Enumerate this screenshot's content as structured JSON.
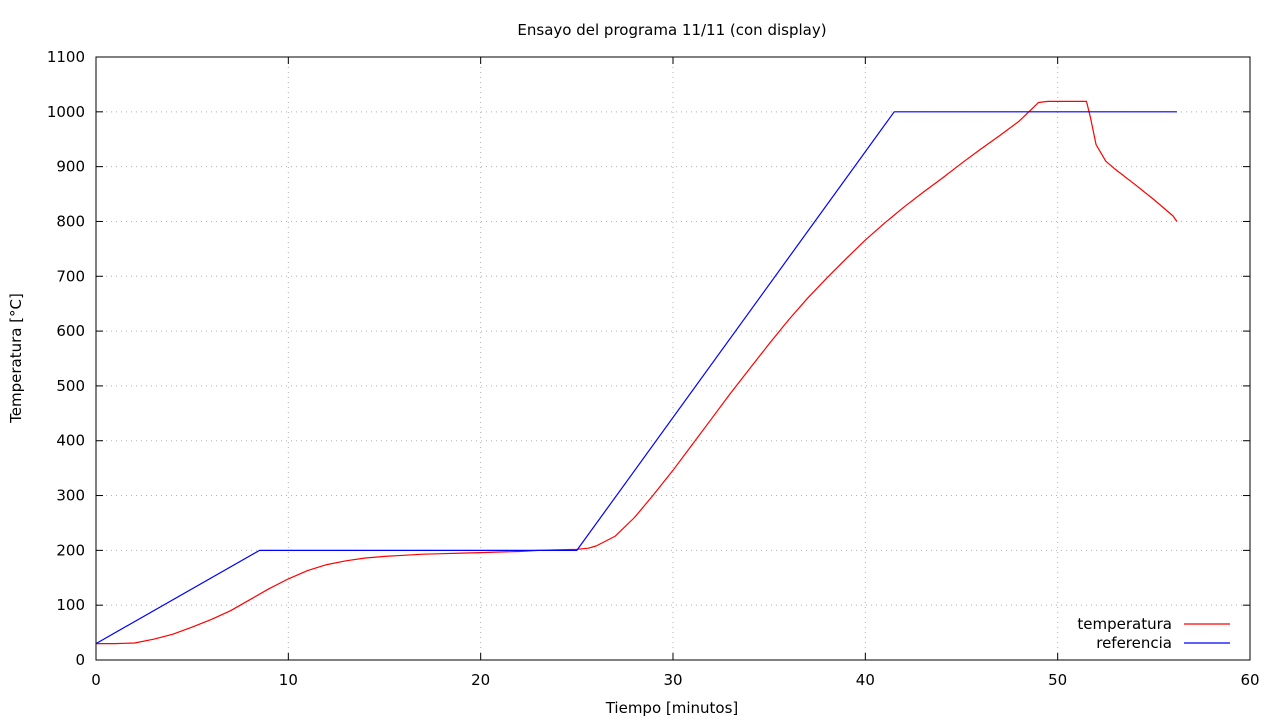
{
  "chart_data": {
    "type": "line",
    "title": "Ensayo del programa 11/11 (con display)",
    "xlabel": "Tiempo [minutos]",
    "ylabel": "Temperatura [°C]",
    "xlim": [
      0,
      60
    ],
    "ylim": [
      0,
      1100
    ],
    "xticks": [
      0,
      10,
      20,
      30,
      40,
      50,
      60
    ],
    "yticks": [
      0,
      100,
      200,
      300,
      400,
      500,
      600,
      700,
      800,
      900,
      1000,
      1100
    ],
    "grid": true,
    "legend_position": "bottom-right",
    "series": [
      {
        "name": "temperatura",
        "color": "#ff0000",
        "points": [
          [
            0,
            30
          ],
          [
            1,
            30
          ],
          [
            2,
            31
          ],
          [
            3,
            38
          ],
          [
            4,
            47
          ],
          [
            5,
            60
          ],
          [
            6,
            74
          ],
          [
            7,
            90
          ],
          [
            8,
            110
          ],
          [
            9,
            130
          ],
          [
            10,
            148
          ],
          [
            11,
            163
          ],
          [
            12,
            174
          ],
          [
            13,
            181
          ],
          [
            14,
            186
          ],
          [
            15,
            189
          ],
          [
            16,
            191
          ],
          [
            17,
            193
          ],
          [
            18,
            194
          ],
          [
            19,
            195
          ],
          [
            20,
            196
          ],
          [
            21,
            197
          ],
          [
            22,
            198
          ],
          [
            23,
            200
          ],
          [
            24,
            201
          ],
          [
            25,
            202
          ],
          [
            25.6,
            204
          ],
          [
            26,
            208
          ],
          [
            27,
            226
          ],
          [
            28,
            260
          ],
          [
            29,
            302
          ],
          [
            30,
            346
          ],
          [
            31,
            393
          ],
          [
            32,
            440
          ],
          [
            33,
            487
          ],
          [
            34,
            532
          ],
          [
            35,
            577
          ],
          [
            36,
            620
          ],
          [
            37,
            660
          ],
          [
            38,
            697
          ],
          [
            39,
            732
          ],
          [
            40,
            766
          ],
          [
            41,
            797
          ],
          [
            42,
            826
          ],
          [
            43,
            853
          ],
          [
            44,
            879
          ],
          [
            45,
            906
          ],
          [
            46,
            932
          ],
          [
            47,
            957
          ],
          [
            48,
            983
          ],
          [
            48.8,
            1010
          ],
          [
            49,
            1017
          ],
          [
            49.5,
            1019
          ],
          [
            51.5,
            1019
          ],
          [
            51.7,
            990
          ],
          [
            52,
            940
          ],
          [
            52.5,
            910
          ],
          [
            53,
            895
          ],
          [
            54,
            868
          ],
          [
            55,
            840
          ],
          [
            56,
            810
          ],
          [
            56.2,
            800
          ]
        ]
      },
      {
        "name": "referencia",
        "color": "#0000ff",
        "points": [
          [
            0,
            30
          ],
          [
            8.5,
            200
          ],
          [
            25,
            200
          ],
          [
            41.5,
            1000
          ],
          [
            56.2,
            1000
          ]
        ]
      }
    ]
  }
}
